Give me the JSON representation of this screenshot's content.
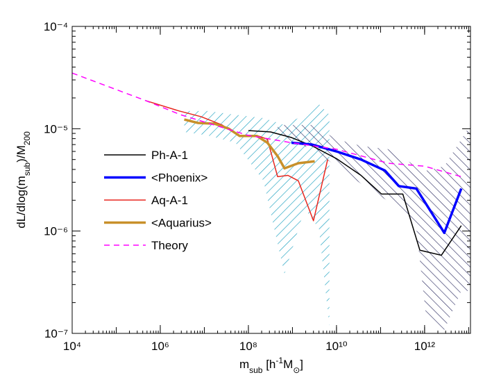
{
  "chart_data": {
    "type": "line",
    "xscale": "log",
    "yscale": "log",
    "xlim": [
      10000,
      11000000000000
    ],
    "ylim": [
      1e-07,
      0.0001
    ],
    "xticks": [
      {
        "value": 10000,
        "label": "10⁴"
      },
      {
        "value": 1000000,
        "label": "10⁶"
      },
      {
        "value": 100000000,
        "label": "10⁸"
      },
      {
        "value": 10000000000,
        "label": "10¹⁰"
      },
      {
        "value": 1000000000000,
        "label": "10¹²"
      }
    ],
    "yticks": [
      {
        "value": 1e-07,
        "label": "10⁻⁷"
      },
      {
        "value": 1e-06,
        "label": "10⁻⁶"
      },
      {
        "value": 1e-05,
        "label": "10⁻⁵"
      },
      {
        "value": 0.0001,
        "label": "10⁻⁴"
      }
    ],
    "xlabel": [
      {
        "text": "m"
      },
      {
        "text": "sub",
        "shift": "sub"
      },
      {
        "text": " [h"
      },
      {
        "text": "-1",
        "shift": "super"
      },
      {
        "text": "M"
      },
      {
        "text": "⊙",
        "shift": "sub"
      },
      {
        "text": "]"
      }
    ],
    "ylabel": [
      {
        "text": "dL/dlog(m"
      },
      {
        "text": "sub",
        "shift": "sub"
      },
      {
        "text": ")/M"
      },
      {
        "text": "200",
        "shift": "sub"
      }
    ],
    "legend": "center left",
    "series": [
      {
        "name": "Ph-A-1",
        "color": "#000000",
        "width": 1.5,
        "x": [
          100000000,
          320000000,
          950000000,
          2800000000,
          10000000000,
          36000000000,
          105000000000,
          320000000000,
          780000000000,
          2400000000000,
          6800000000000
        ],
        "values": [
          9.6e-06,
          9.3e-06,
          8.2e-06,
          6.8e-06,
          5.1e-06,
          3.5e-06,
          2.3e-06,
          2.3e-06,
          6.5e-07,
          5.8e-07,
          1.13e-06
        ]
      },
      {
        "name": "<Phoenix>",
        "color": "#0000ff",
        "width": 3.5,
        "x": [
          950000000,
          2800000000,
          10000000000,
          36000000000,
          126000000000,
          260000000000,
          650000000000,
          2800000000000,
          6800000000000
        ],
        "values": [
          7.3e-06,
          7e-06,
          6e-06,
          5e-06,
          3.9e-06,
          2.75e-06,
          2.6e-06,
          9.6e-07,
          2.6e-06
        ]
      },
      {
        "name": "Aq-A-1",
        "color": "#e8261e",
        "width": 1.5,
        "x": [
          470000,
          2700000,
          8500000,
          25000000,
          63000000,
          155000000,
          270000000,
          460000000,
          790000000,
          1360000000,
          3000000000,
          6300000000
        ],
        "values": [
          1.88e-05,
          1.49e-05,
          1.31e-05,
          1.09e-05,
          8.5e-06,
          8.6e-06,
          7.9e-06,
          3.4e-06,
          3.5e-06,
          3.1e-06,
          1.26e-06,
          5e-06
        ]
      },
      {
        "name": "<Aquarius>",
        "color": "#c8902a",
        "width": 3.5,
        "x": [
          3500000,
          7100000,
          17000000,
          36000000,
          63000000,
          155000000,
          270000000,
          460000000,
          660000000,
          1360000000,
          3200000000
        ],
        "values": [
          1.23e-05,
          1.14e-05,
          1.12e-05,
          1e-05,
          8.5e-06,
          8.5e-06,
          7.3e-06,
          5.4e-06,
          4.1e-06,
          4.6e-06,
          4.8e-06
        ]
      },
      {
        "name": "Theory",
        "color": "#ff00ff",
        "width": 1.5,
        "dash": "8,6",
        "x": [
          10000,
          470000,
          2900000,
          100000000,
          950000000,
          10000000000,
          150000000000,
          1000000000000,
          6800000000000
        ],
        "values": [
          3.5e-05,
          1.88e-05,
          1.37e-05,
          8.6e-06,
          7.3e-06,
          6.3e-06,
          4.6e-06,
          4.3e-06,
          3.4e-06
        ]
      }
    ],
    "bands": [
      {
        "color": "#1aa0c0",
        "x": [
          3500000,
          12000000,
          51000000,
          220000000,
          660000000,
          1900000000,
          4000000000,
          6900000000
        ],
        "upper": [
          1.49e-05,
          1.49e-05,
          1.37e-05,
          1.27e-05,
          1.09e-05,
          1.37e-05,
          1.74e-05,
          1.37e-05
        ],
        "lower": [
          9.3e-06,
          8.6e-06,
          7.3e-06,
          3.1e-06,
          3.8e-07,
          1.66e-06,
          1.05e-06,
          1.17e-07
        ]
      },
      {
        "color": "#333366",
        "x": [
          460000000,
          2800000000,
          10000000000,
          36000000000,
          150000000000,
          650000000000,
          1100000000000,
          2800000000000,
          6800000000000,
          11000000000000
        ],
        "upper": [
          1.09e-05,
          1.09e-05,
          7.9e-06,
          6.8e-06,
          6.3e-06,
          4.3e-06,
          3.9e-06,
          4.3e-06,
          7.9e-06,
          1.09e-05
        ],
        "lower": [
          8.6e-06,
          6.3e-06,
          4.3e-06,
          2.9e-06,
          1.95e-06,
          1.05e-06,
          1.36e-07,
          1.08e-07,
          2.6e-07,
          2.6e-07
        ]
      }
    ]
  }
}
